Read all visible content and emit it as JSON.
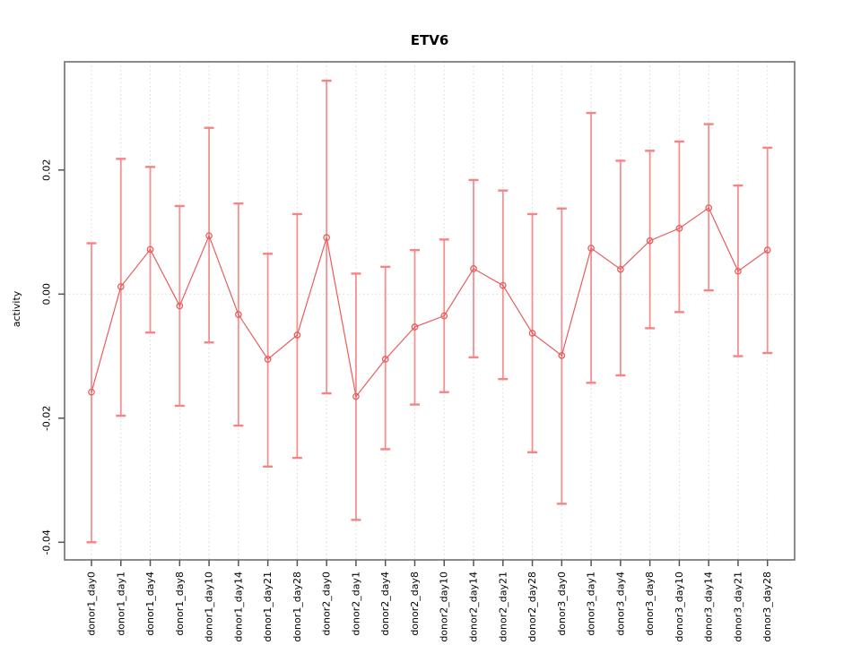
{
  "chart_data": {
    "type": "line",
    "variant": "points-with-error-bars",
    "title": "ETV6",
    "xlabel": "",
    "ylabel": "activity",
    "legend": null,
    "grid": {
      "vertical_category_lines": true,
      "zero_line_dotted": true
    },
    "ylim": [
      -0.043,
      0.0377
    ],
    "yticks": [
      {
        "v": -0.04,
        "label": "-0.04"
      },
      {
        "v": -0.02,
        "label": "-0.02"
      },
      {
        "v": 0.0,
        "label": "0.00"
      },
      {
        "v": 0.02,
        "label": "0.02"
      }
    ],
    "categories": [
      "donor1_day0",
      "donor1_day1",
      "donor1_day4",
      "donor1_day8",
      "donor1_day10",
      "donor1_day14",
      "donor1_day21",
      "donor1_day28",
      "donor2_day0",
      "donor2_day1",
      "donor2_day4",
      "donor2_day8",
      "donor2_day10",
      "donor2_day14",
      "donor2_day21",
      "donor2_day28",
      "donor3_day0",
      "donor3_day1",
      "donor3_day4",
      "donor3_day8",
      "donor3_day10",
      "donor3_day14",
      "donor3_day21",
      "donor3_day28"
    ],
    "series": [
      {
        "name": "activity",
        "values": [
          -0.0158,
          0.0012,
          0.0072,
          -0.0019,
          0.0094,
          -0.0033,
          -0.0105,
          -0.0066,
          0.0091,
          -0.0165,
          -0.0105,
          -0.0053,
          -0.0035,
          0.0041,
          0.0014,
          -0.0063,
          -0.0099,
          0.0074,
          0.004,
          0.0086,
          0.0106,
          0.0139,
          0.0037,
          0.0071
        ],
        "ci_lower": [
          -0.04,
          -0.0196,
          -0.0062,
          -0.018,
          -0.0078,
          -0.0212,
          -0.0278,
          -0.0264,
          -0.016,
          -0.0364,
          -0.025,
          -0.0178,
          -0.0158,
          -0.0102,
          -0.0137,
          -0.0255,
          -0.0338,
          -0.0143,
          -0.0131,
          -0.0055,
          -0.0029,
          0.0006,
          -0.01,
          -0.0095
        ],
        "ci_upper": [
          0.0082,
          0.0218,
          0.0205,
          0.0142,
          0.0268,
          0.0146,
          0.0065,
          0.0129,
          0.0344,
          0.0033,
          0.0044,
          0.0071,
          0.0088,
          0.0184,
          0.0167,
          0.0129,
          0.0138,
          0.0292,
          0.0215,
          0.0231,
          0.0246,
          0.0274,
          0.0175,
          0.0236
        ]
      }
    ],
    "colors": {
      "series_line": "#e85d5d",
      "point_stroke": "#e85d5d",
      "error_bar": "#f59090",
      "error_bar_cap": "#f58484",
      "grid": "#d8d8d8",
      "frame": "#6e6e6e",
      "tick": "#555555",
      "text": "#000000",
      "background": "#ffffff"
    }
  }
}
